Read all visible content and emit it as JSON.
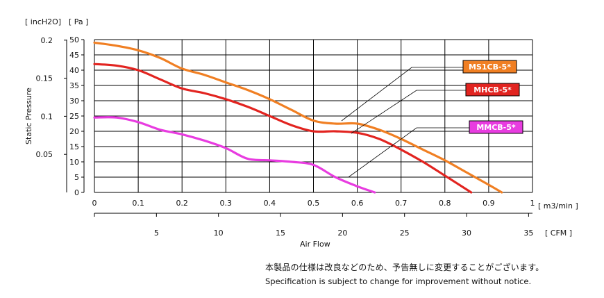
{
  "chart_data": {
    "type": "line",
    "ylabel": "Static Pressure",
    "xlabel": "Air Flow",
    "y_units_left": "[ incH2O]",
    "y_units_right": "[ Pa ]",
    "x_units_top": "[ m3/min ]",
    "x_units_bottom": "[ CFM ]",
    "y_pa_range": [
      0,
      50
    ],
    "y_pa_ticks": [
      "0",
      "5",
      "10",
      "15",
      "20",
      "25",
      "30",
      "35",
      "40",
      "45",
      "50"
    ],
    "y_inch_ticks": [
      {
        "v": 0.05,
        "label": "0.05"
      },
      {
        "v": 0.1,
        "label": "0.1"
      },
      {
        "v": 0.15,
        "label": "0.15"
      },
      {
        "v": 0.2,
        "label": "0.2"
      }
    ],
    "x_m3_range": [
      0,
      1
    ],
    "x_m3_ticks": [
      "0",
      "0.1",
      "0.2",
      "0.3",
      "0.4",
      "0.5",
      "0.6",
      "0.7",
      "0.8",
      "0.9",
      "1"
    ],
    "x_cfm_ticks": [
      {
        "v": 5,
        "label": "5"
      },
      {
        "v": 10,
        "label": "10"
      },
      {
        "v": 15,
        "label": "15"
      },
      {
        "v": 20,
        "label": "20"
      },
      {
        "v": 25,
        "label": "25"
      },
      {
        "v": 30,
        "label": "30"
      },
      {
        "v": 35,
        "label": "35"
      }
    ],
    "grid": true,
    "series": [
      {
        "name": "MS1CB-5*",
        "color": "#f07f23",
        "x": [
          0,
          0.05,
          0.1,
          0.15,
          0.2,
          0.25,
          0.3,
          0.35,
          0.4,
          0.45,
          0.5,
          0.55,
          0.6,
          0.65,
          0.7,
          0.75,
          0.8,
          0.85,
          0.9,
          0.93
        ],
        "y": [
          49,
          48,
          46.5,
          44,
          40.5,
          38.5,
          36,
          33.5,
          30.5,
          27,
          23.5,
          22.5,
          22.5,
          20.5,
          17.5,
          14,
          10.5,
          6.5,
          2.5,
          0
        ]
      },
      {
        "name": "MHCB-5*",
        "color": "#e22420",
        "x": [
          0,
          0.05,
          0.1,
          0.15,
          0.2,
          0.25,
          0.3,
          0.35,
          0.4,
          0.45,
          0.5,
          0.55,
          0.6,
          0.65,
          0.7,
          0.75,
          0.8,
          0.86
        ],
        "y": [
          42,
          41.5,
          40,
          37,
          34,
          32.5,
          30.5,
          28,
          25,
          22,
          20,
          20,
          19.5,
          17.5,
          14,
          10,
          5.5,
          0
        ]
      },
      {
        "name": "MMCB-5*",
        "color": "#e83ce0",
        "x": [
          0,
          0.05,
          0.1,
          0.15,
          0.2,
          0.25,
          0.3,
          0.35,
          0.4,
          0.45,
          0.5,
          0.55,
          0.6,
          0.64
        ],
        "y": [
          24.5,
          24.5,
          23,
          20.5,
          19,
          17,
          14.5,
          11,
          10.5,
          10,
          9,
          5,
          2,
          0
        ]
      }
    ]
  },
  "notes": {
    "ja": "本製品の仕様は改良などのため、予告無しに変更することがございます。",
    "en": "Specification is subject to change for improvement without notice."
  }
}
